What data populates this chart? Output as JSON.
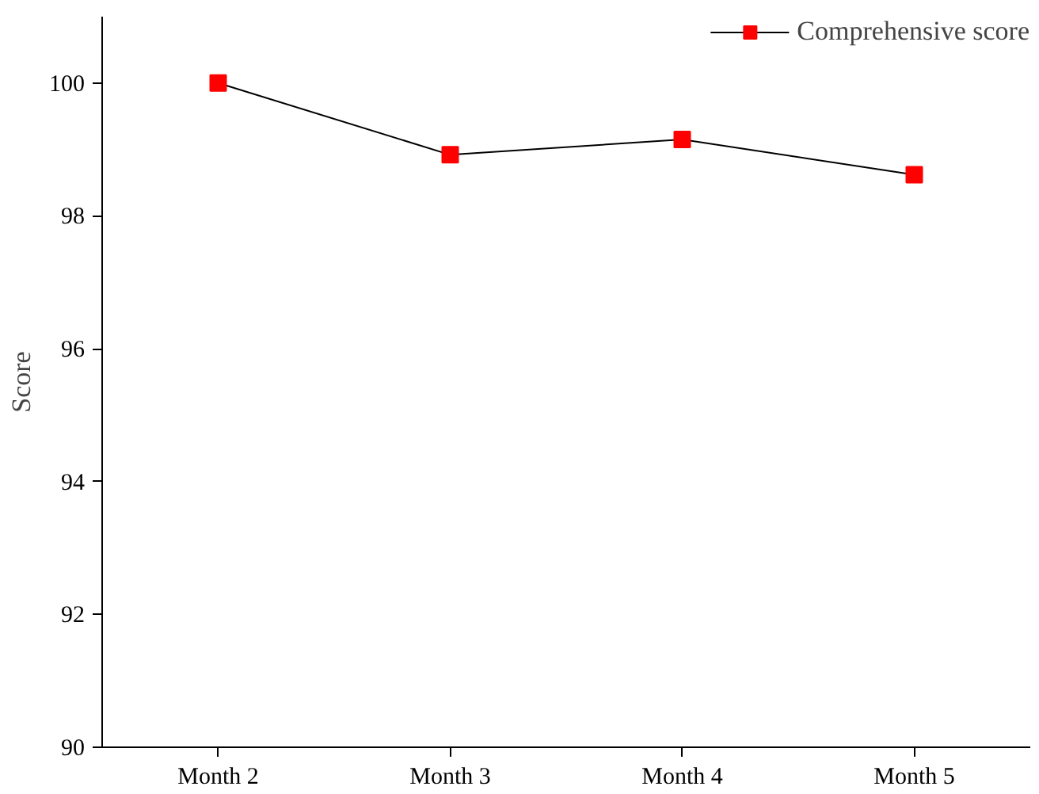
{
  "chart_data": {
    "type": "line",
    "ylabel": "Score",
    "categories": [
      "Month 2",
      "Month 3",
      "Month 4",
      "Month 5"
    ],
    "series": [
      {
        "name": "Comprehensive score",
        "color": "#ff0000",
        "values": [
          100,
          98.92,
          99.15,
          98.62
        ]
      }
    ],
    "ylim": [
      90,
      101
    ],
    "yticks": [
      90,
      92,
      94,
      96,
      98,
      100
    ],
    "grid": false,
    "legend": "top right",
    "marker": "square",
    "line_style": "solid"
  }
}
